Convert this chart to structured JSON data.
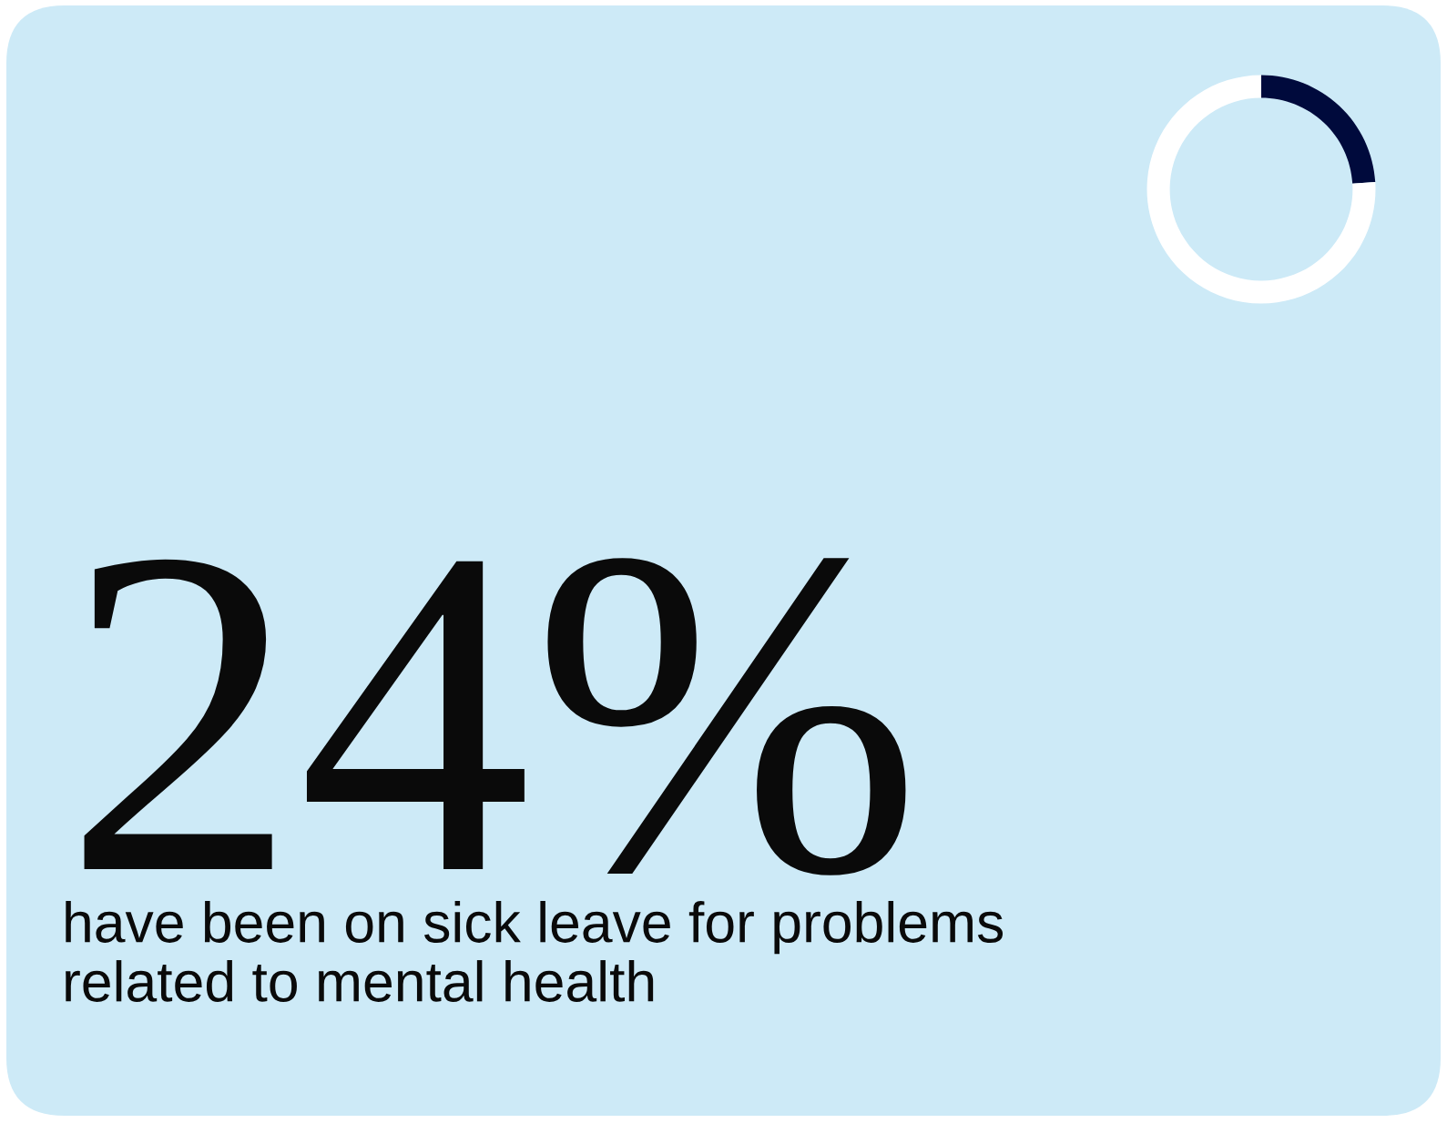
{
  "chart_data": {
    "type": "donut",
    "title": "24%",
    "subtitle": "have been on sick leave for problems\nrelated to mental health",
    "categories": [
      null,
      null
    ],
    "values": [
      24,
      76
    ],
    "colors": [
      "#000a3c",
      "#ffffff"
    ]
  }
}
